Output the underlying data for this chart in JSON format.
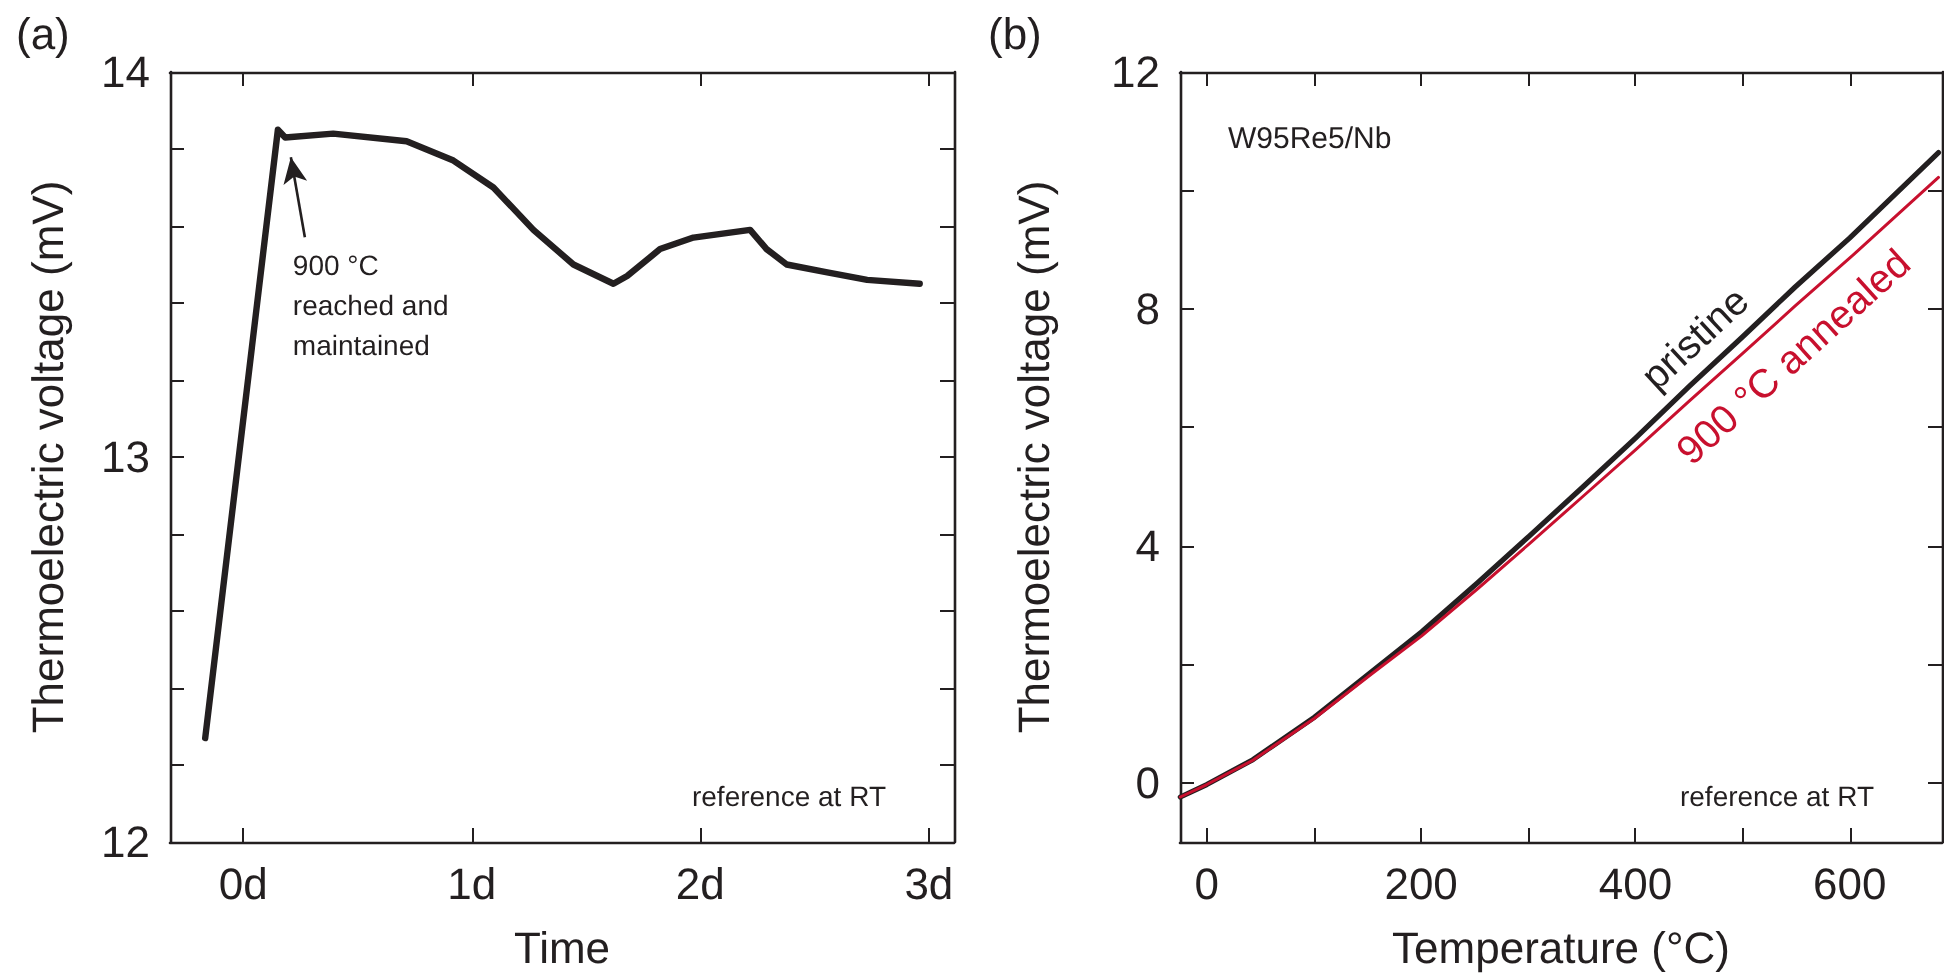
{
  "chart_data": [
    {
      "type": "line",
      "title": "(a)",
      "xlabel": "Time",
      "ylabel": "Thermoelectric voltage (mV)",
      "xlim": [
        -0.32,
        3.11
      ],
      "xticks": [
        {
          "value": 0,
          "label": "0d"
        },
        {
          "value": 1,
          "label": "1d"
        },
        {
          "value": 2,
          "label": "2d"
        },
        {
          "value": 3,
          "label": "3d"
        }
      ],
      "ylim": [
        12,
        14
      ],
      "yticks": [
        12,
        {
          "value": 12.2,
          "label": null
        },
        {
          "value": 12.4,
          "label": null
        },
        {
          "value": 12.6,
          "label": null
        },
        {
          "value": 12.8,
          "label": null
        },
        13,
        {
          "value": 13.2,
          "label": null
        },
        {
          "value": 13.4,
          "label": null
        },
        {
          "value": 13.6,
          "label": null
        },
        {
          "value": 13.8,
          "label": null
        },
        14
      ],
      "series": [
        {
          "color": "#231f20",
          "x": [
            -0.166,
            0.152,
            0.184,
            0.394,
            0.715,
            0.92,
            1.095,
            1.27,
            1.445,
            1.62,
            1.68,
            1.824,
            1.97,
            2.218,
            2.29,
            2.378,
            2.55,
            2.73,
            2.96
          ],
          "values": [
            12.27,
            13.85,
            13.83,
            13.84,
            13.82,
            13.77,
            13.7,
            13.59,
            13.5,
            13.45,
            13.47,
            13.54,
            13.57,
            13.59,
            13.54,
            13.5,
            13.48,
            13.46,
            13.45
          ]
        }
      ],
      "annotations": [
        {
          "text": "900 °C\nreached and\nmaintained",
          "x": 0.2,
          "y": 13.82
        },
        "reference at RT"
      ],
      "marker": "none",
      "line_style": "solid"
    },
    {
      "type": "line",
      "title": "(b)",
      "xlabel": "Temperature (°C)",
      "ylabel": "Thermoelectric voltage (mV)",
      "xlim": [
        -25,
        686
      ],
      "xticks": [
        0,
        {
          "value": 100,
          "label": null
        },
        200,
        {
          "value": 300,
          "label": null
        },
        400,
        {
          "value": 500,
          "label": null
        },
        600
      ],
      "ylim": [
        -1,
        12
      ],
      "yticks": [
        0,
        {
          "value": 2,
          "label": null
        },
        4,
        {
          "value": 6,
          "label": null
        },
        8,
        {
          "value": 10,
          "label": null
        },
        12
      ],
      "series": [
        {
          "name": "pristine",
          "color": "#231f20",
          "x": [
            -24.7,
            0,
            43,
            100.6,
            154,
            200.6,
            253,
            300.6,
            351.9,
            400,
            450.6,
            500,
            549,
            600,
            682.7
          ],
          "values": [
            -0.24,
            -0.03,
            0.39,
            1.11,
            1.88,
            2.55,
            3.38,
            4.16,
            5.01,
            5.82,
            6.7,
            7.53,
            8.37,
            9.2,
            10.64
          ]
        },
        {
          "name": "900 °C annealed",
          "color": "#c8102e",
          "x": [
            -24.7,
            0,
            43,
            100.6,
            154,
            200.6,
            253,
            300.6,
            351.9,
            400,
            450.6,
            500,
            549,
            600,
            682.7
          ],
          "values": [
            -0.24,
            -0.03,
            0.38,
            1.09,
            1.84,
            2.48,
            3.28,
            4.03,
            4.85,
            5.62,
            6.45,
            7.25,
            8.05,
            8.86,
            10.22
          ]
        }
      ],
      "annotations": [
        "W95Re5/Nb",
        "reference at RT"
      ],
      "marker": "none",
      "line_style": "solid"
    }
  ]
}
